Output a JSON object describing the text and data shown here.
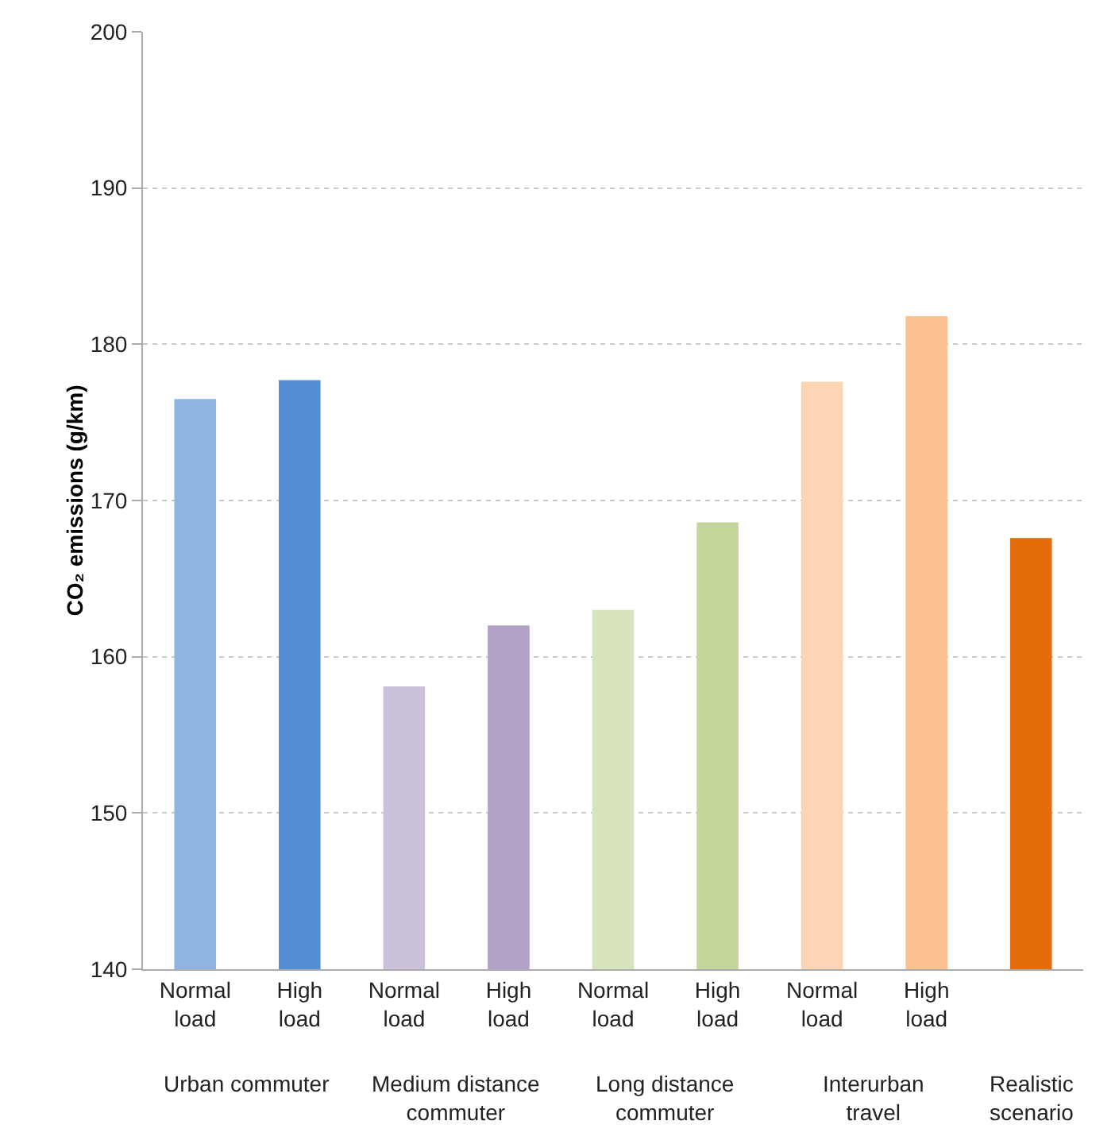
{
  "chart_data": {
    "type": "bar",
    "ylabel": "CO₂ emissions (g/km)",
    "categories": [
      "Normal load",
      "High load",
      "Normal load",
      "High load",
      "Normal load",
      "High load",
      "Normal load",
      "High load",
      null
    ],
    "values": [
      176.5,
      177.7,
      158.1,
      162.0,
      163.0,
      168.6,
      177.6,
      181.8,
      167.6
    ],
    "colors": [
      "#8eb4e3",
      "#558ed5",
      "#ccc1da",
      "#b3a2c7",
      "#d7e4bd",
      "#c3d69b",
      "#fcd5b5",
      "#fac090",
      "#e46c0a"
    ],
    "ylim": [
      140,
      200
    ],
    "yticks": [
      140,
      150,
      160,
      170,
      180,
      190,
      200
    ],
    "grid": "y",
    "annotations": [
      "Urban commuter",
      "Medium distance commuter",
      "Long distance commuter",
      "Interurban travel",
      "Realistic scenario"
    ]
  }
}
